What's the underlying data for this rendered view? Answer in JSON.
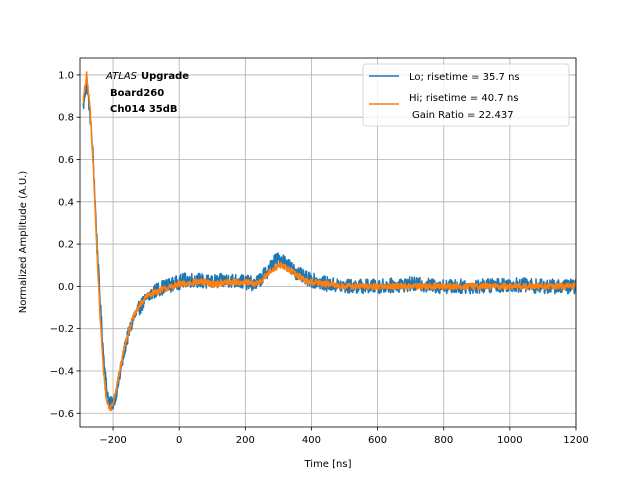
{
  "chart_data": {
    "type": "line",
    "title": "",
    "xlabel": "Time [ns]",
    "ylabel": "Normalized Amplitude (A.U.)",
    "xlim": [
      -300,
      1200
    ],
    "ylim": [
      -0.665,
      1.08
    ],
    "xticks": [
      -200,
      0,
      200,
      400,
      600,
      800,
      1000,
      1200
    ],
    "yticks": [
      -0.6,
      -0.4,
      -0.2,
      0.0,
      0.2,
      0.4,
      0.6,
      0.8,
      1.0
    ],
    "xtick_labels": [
      "−200",
      "0",
      "200",
      "400",
      "600",
      "800",
      "1000",
      "1200"
    ],
    "ytick_labels": [
      "−0.6",
      "−0.4",
      "−0.2",
      "0.0",
      "0.2",
      "0.4",
      "0.6",
      "0.8",
      "1.0"
    ],
    "grid": true,
    "legend_position": "top-right",
    "annotation": {
      "italic_part": "ATLAS",
      "bold_part": "Upgrade",
      "line2": "Board260",
      "line3": "Ch014 35dB"
    },
    "series": [
      {
        "name": "Lo; risetime = 35.7 ns",
        "color": "#1f77b4",
        "noise_amplitude": 0.035,
        "keypoints": {
          "x": [
            -290,
            -280,
            -270,
            -260,
            -250,
            -240,
            -230,
            -220,
            -210,
            -200,
            -190,
            -180,
            -170,
            -160,
            -140,
            -120,
            -100,
            -80,
            -60,
            -40,
            -20,
            0,
            20,
            40,
            60,
            80,
            100,
            150,
            200,
            230,
            250,
            270,
            290,
            310,
            330,
            350,
            380,
            400,
            450,
            500,
            600,
            700,
            800,
            900,
            1000,
            1100,
            1200
          ],
          "y": [
            0.85,
            0.97,
            0.82,
            0.6,
            0.25,
            -0.05,
            -0.3,
            -0.48,
            -0.56,
            -0.55,
            -0.5,
            -0.43,
            -0.34,
            -0.26,
            -0.16,
            -0.1,
            -0.06,
            -0.03,
            -0.01,
            0.0,
            0.01,
            0.02,
            0.03,
            0.03,
            0.03,
            0.02,
            0.02,
            0.03,
            0.02,
            0.01,
            0.04,
            0.08,
            0.12,
            0.13,
            0.1,
            0.07,
            0.04,
            0.03,
            0.01,
            0.0,
            0.0,
            0.01,
            0.0,
            0.0,
            0.01,
            0.0,
            0.0
          ]
        }
      },
      {
        "name": "Hi; risetime = 40.7 ns",
        "name_line2": "Gain Ratio = 22.437",
        "color": "#ff7f0e",
        "noise_amplitude": 0.015,
        "keypoints": {
          "x": [
            -290,
            -280,
            -270,
            -260,
            -250,
            -240,
            -230,
            -220,
            -210,
            -200,
            -190,
            -180,
            -170,
            -160,
            -140,
            -120,
            -100,
            -80,
            -60,
            -40,
            -20,
            0,
            20,
            40,
            60,
            80,
            100,
            150,
            200,
            230,
            250,
            270,
            290,
            310,
            330,
            350,
            380,
            400,
            450,
            500,
            600,
            700,
            800,
            900,
            1000,
            1100,
            1200
          ],
          "y": [
            0.88,
            1.0,
            0.85,
            0.58,
            0.2,
            -0.12,
            -0.38,
            -0.54,
            -0.58,
            -0.55,
            -0.48,
            -0.4,
            -0.32,
            -0.25,
            -0.15,
            -0.09,
            -0.05,
            -0.03,
            -0.02,
            -0.01,
            0.0,
            0.01,
            0.01,
            0.02,
            0.02,
            0.02,
            0.01,
            0.02,
            0.02,
            0.01,
            0.03,
            0.06,
            0.09,
            0.1,
            0.08,
            0.06,
            0.03,
            0.02,
            0.01,
            0.0,
            0.0,
            0.0,
            0.0,
            0.0,
            0.0,
            0.0,
            0.0
          ]
        }
      }
    ]
  }
}
